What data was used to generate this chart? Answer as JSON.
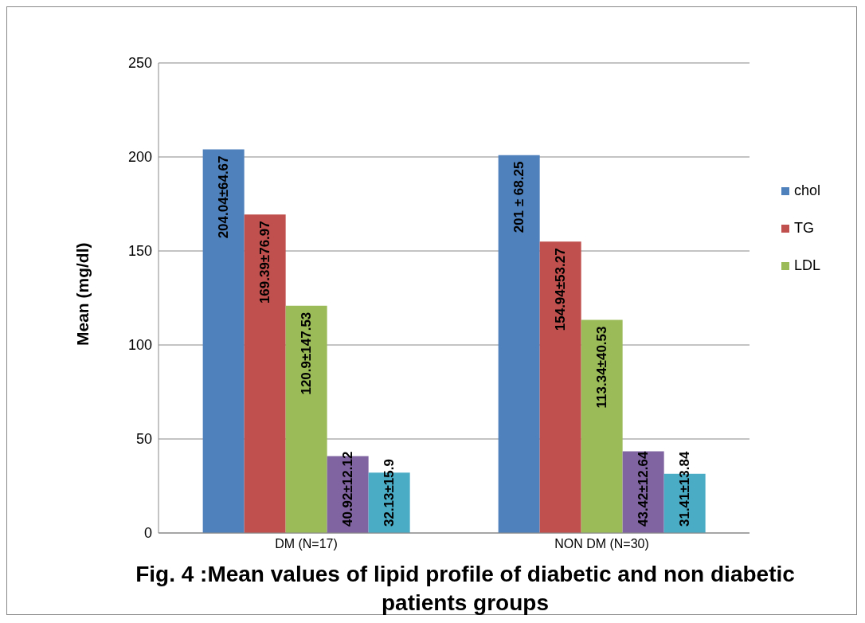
{
  "chart_data": {
    "type": "bar",
    "title": "Fig. 4 :Mean values of lipid profile of diabetic and non diabetic patients groups",
    "ylabel": "Mean (mg/dl)",
    "categories": [
      "DM (N=17)",
      "NON DM (N=30)"
    ],
    "series": [
      {
        "name": "chol",
        "color": "#4f81bd",
        "values": [
          204.04,
          201
        ],
        "value_labels": [
          "204.04±64.67",
          "201 ± 68.25"
        ]
      },
      {
        "name": "TG",
        "color": "#c0504d",
        "values": [
          169.39,
          154.94
        ],
        "value_labels": [
          "169.39±76.97",
          "154.94±53.27"
        ]
      },
      {
        "name": "LDL",
        "color": "#9bbb59",
        "values": [
          120.9,
          113.34
        ],
        "value_labels": [
          "120.9±147.53",
          "113.34±40.53"
        ]
      },
      {
        "color": "#8064a2",
        "values": [
          40.92,
          43.42
        ],
        "value_labels": [
          "40.92±12.12",
          "43.42±12.64"
        ]
      },
      {
        "color": "#4bacc6",
        "values": [
          32.13,
          31.41
        ],
        "value_labels": [
          "32.13±15.9",
          "31.41±13.84"
        ]
      }
    ],
    "ylim": [
      0,
      250
    ],
    "yticks": [
      0,
      50,
      100,
      150,
      200,
      250
    ],
    "grid": "y",
    "legend": "right"
  }
}
